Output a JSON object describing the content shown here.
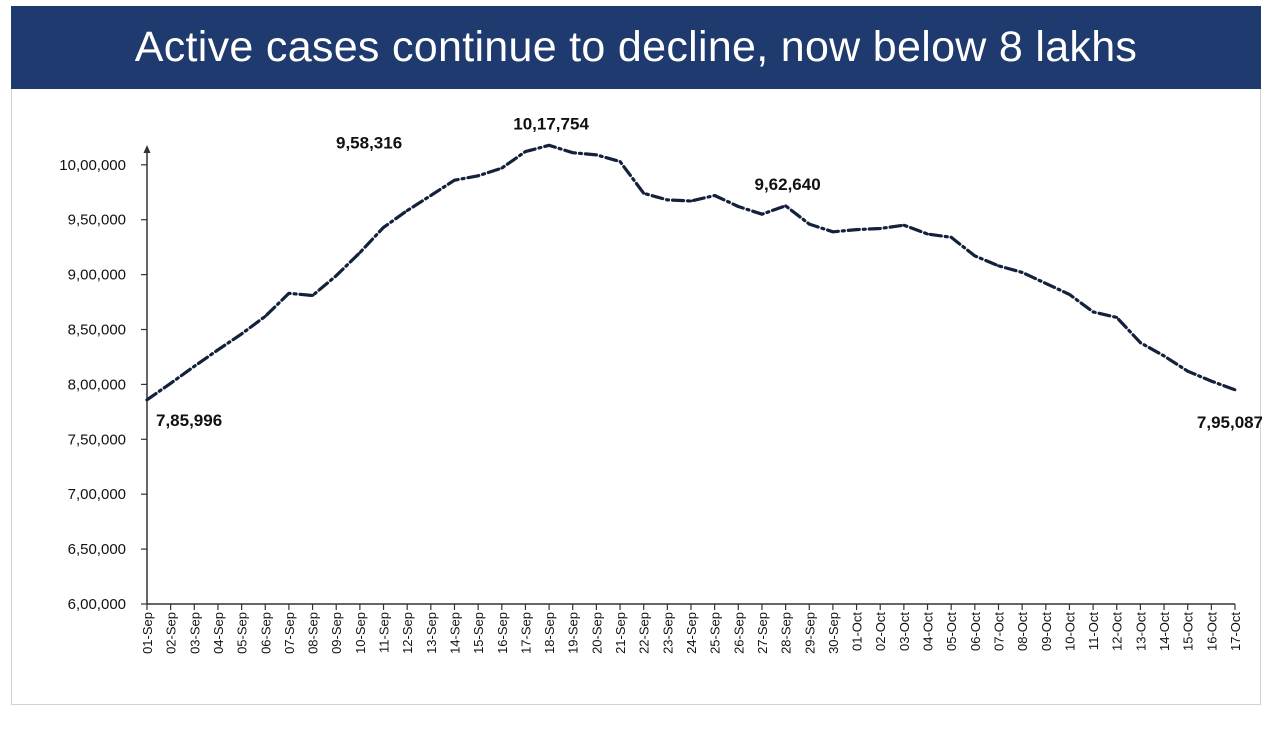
{
  "header": {
    "title": "Active cases continue to decline, now below 8 lakhs"
  },
  "colors": {
    "banner": "#1f3a6e",
    "banner_text": "#ffffff",
    "line": "#14213d",
    "axis": "#333333"
  },
  "chart_data": {
    "type": "line",
    "title": "Active cases continue to decline, now below 8 lakhs",
    "xlabel": "",
    "ylabel": "",
    "ylim": [
      600000,
      1010000
    ],
    "yticks": [
      600000,
      650000,
      700000,
      750000,
      800000,
      850000,
      900000,
      950000,
      1000000
    ],
    "ytick_labels": [
      "6,00,000",
      "6,50,000",
      "7,00,000",
      "7,50,000",
      "8,00,000",
      "8,50,000",
      "9,00,000",
      "9,50,000",
      "10,00,000"
    ],
    "grid": false,
    "legend": "none",
    "line_style": "dash-dot",
    "categories": [
      "01-Sep",
      "02-Sep",
      "03-Sep",
      "04-Sep",
      "05-Sep",
      "06-Sep",
      "07-Sep",
      "08-Sep",
      "09-Sep",
      "10-Sep",
      "11-Sep",
      "12-Sep",
      "13-Sep",
      "14-Sep",
      "15-Sep",
      "16-Sep",
      "17-Sep",
      "18-Sep",
      "19-Sep",
      "20-Sep",
      "21-Sep",
      "22-Sep",
      "23-Sep",
      "24-Sep",
      "25-Sep",
      "26-Sep",
      "27-Sep",
      "28-Sep",
      "29-Sep",
      "30-Sep",
      "01-Oct",
      "02-Oct",
      "03-Oct",
      "04-Oct",
      "05-Oct",
      "06-Oct",
      "07-Oct",
      "08-Oct",
      "09-Oct",
      "10-Oct",
      "11-Oct",
      "12-Oct",
      "13-Oct",
      "14-Oct",
      "15-Oct",
      "16-Oct",
      "17-Oct"
    ],
    "series": [
      {
        "values": [
          785996,
          801000,
          816500,
          831500,
          846000,
          862000,
          883000,
          881000,
          899000,
          920000,
          943000,
          958316,
          972000,
          986000,
          990000,
          997000,
          1012000,
          1017754,
          1011000,
          1009000,
          1003000,
          974000,
          968000,
          967000,
          972000,
          962000,
          955000,
          962640,
          946000,
          939000,
          941000,
          942000,
          945000,
          937000,
          934000,
          917000,
          908000,
          902000,
          892000,
          882000,
          866000,
          861000,
          838000,
          826000,
          812000,
          803000,
          795087
        ]
      }
    ],
    "annotations": [
      {
        "index": 0,
        "text": "7,85,996",
        "position": "below-right"
      },
      {
        "index": 11,
        "text": "9,58,316",
        "position": "above-left"
      },
      {
        "index": 17,
        "text": "10,17,754",
        "position": "above"
      },
      {
        "index": 27,
        "text": "9,62,640",
        "position": "above"
      },
      {
        "index": 46,
        "text": "7,95,087",
        "position": "below"
      }
    ]
  }
}
